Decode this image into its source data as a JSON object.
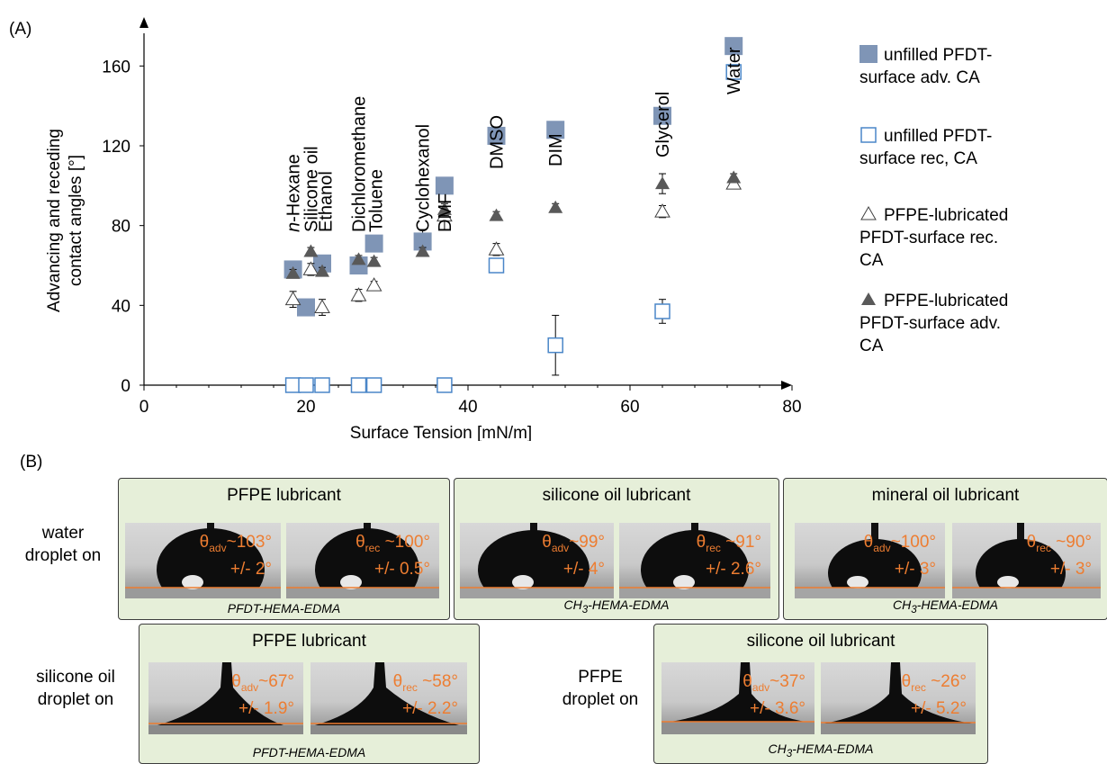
{
  "panel_a_label": "(A)",
  "panel_b_label": "(B)",
  "chart_data": {
    "type": "scatter",
    "xlabel": "Surface Tension [mN/m]",
    "ylabel": "Advancing and receding contact angles [°]",
    "xlim": [
      0,
      80
    ],
    "ylim": [
      0,
      180
    ],
    "xticks": [
      0,
      20,
      40,
      60,
      80
    ],
    "yticks": [
      0,
      40,
      80,
      120,
      160
    ],
    "grid": false,
    "legend": "right",
    "series": [
      {
        "name": "unfilled PFDT-surface adv. CA",
        "marker": "filled-square",
        "color": "#7f95b6",
        "x": [
          18.4,
          20.0,
          22.0,
          26.5,
          28.4,
          34.4,
          37.1,
          43.5,
          50.8,
          64.0,
          72.8
        ],
        "y": [
          58,
          39,
          61,
          60,
          71,
          72,
          100,
          125,
          128,
          135,
          170
        ],
        "err": [
          0,
          0,
          0,
          0,
          0,
          6,
          0,
          0,
          0,
          0,
          0
        ]
      },
      {
        "name": "unfilled PFDT-surface rec, CA",
        "marker": "open-square",
        "color": "#4a86c8",
        "x": [
          18.4,
          20.0,
          22.0,
          26.5,
          28.4,
          34.4,
          37.1,
          43.5,
          50.8,
          64.0,
          72.8
        ],
        "y": [
          0,
          0,
          0,
          0,
          0,
          null,
          0,
          60,
          20,
          37,
          157
        ],
        "err": [
          0,
          0,
          0,
          0,
          0,
          0,
          0,
          1,
          15,
          6,
          1
        ]
      },
      {
        "name": "PFPE-lubricated PFDT-surface rec. CA",
        "marker": "open-triangle",
        "color": "#404040",
        "x": [
          18.4,
          20.6,
          22.0,
          26.5,
          28.4,
          37.1,
          43.5,
          64.0,
          72.8
        ],
        "y": [
          43,
          58,
          39,
          45,
          50,
          85,
          68,
          87,
          101
        ],
        "err": [
          4,
          3,
          4,
          3,
          2,
          7,
          3,
          3,
          2
        ]
      },
      {
        "name": "PFPE-lubricated PFDT-surface adv. CA",
        "marker": "filled-triangle",
        "color": "#595959",
        "x": [
          18.4,
          20.6,
          22.0,
          26.5,
          28.4,
          34.4,
          37.1,
          43.5,
          50.8,
          64.0,
          72.8
        ],
        "y": [
          56,
          67,
          57,
          63,
          62,
          67,
          88,
          85,
          89,
          101,
          104
        ],
        "err": [
          2,
          2,
          2,
          2,
          2,
          2,
          3,
          2,
          2,
          5,
          2
        ]
      }
    ],
    "annotations": [
      {
        "text": "n-Hexane",
        "x": 18.4
      },
      {
        "text": "Silicone oil",
        "x": 20.6
      },
      {
        "text": "Ethanol",
        "x": 22.4
      },
      {
        "text": "Dichloromethane",
        "x": 26.5
      },
      {
        "text": "Toluene",
        "x": 28.6
      },
      {
        "text": "Cyclohexanol",
        "x": 34.4
      },
      {
        "text": "DMF",
        "x": 37.1
      },
      {
        "text": "DMSO",
        "x": 43.5
      },
      {
        "text": "DIM",
        "x": 50.8
      },
      {
        "text": "Glycerol",
        "x": 64.0
      },
      {
        "text": "Water",
        "x": 72.8
      }
    ]
  },
  "panels": {
    "row1_label": "water\ndroplet on",
    "row2_left_label": "silicone oil\ndroplet on",
    "row2_right_label": "PFPE\ndroplet on",
    "p1": {
      "title": "PFPE  lubricant",
      "caption": "PFDT-HEMA-EDMA",
      "adv": "~103°",
      "adv_err": "+/- 2°",
      "rec": " ~100°",
      "rec_err": "+/- 0.5°"
    },
    "p2": {
      "title": "silicone oil lubricant",
      "caption_pre": "CH",
      "caption_sub": "3",
      "caption_post": "-HEMA-EDMA",
      "adv": "~99°",
      "adv_err": "+/- 4°",
      "rec": " ~91°",
      "rec_err": "+/- 2.6°"
    },
    "p3": {
      "title": "mineral oil lubricant",
      "caption_pre": "CH",
      "caption_sub": "3",
      "caption_post": "-HEMA-EDMA",
      "adv": "~100°",
      "adv_err": "+/- 3°",
      "rec": " ~90°",
      "rec_err": "+/- 3°"
    },
    "p4": {
      "title": "PFPE  lubricant",
      "caption": "PFDT-HEMA-EDMA",
      "adv": "~67°",
      "adv_err": "+/- 1.9°",
      "rec": " ~58°",
      "rec_err": "+/- 2.2°"
    },
    "p5": {
      "title": "silicone oil lubricant",
      "caption_pre": "CH",
      "caption_sub": "3",
      "caption_post": "-HEMA-EDMA",
      "adv": "~37°",
      "adv_err": "+/- 3.6°",
      "rec": " ~26°",
      "rec_err": "+/- 5.2°"
    },
    "theta": "θ",
    "adv_sub": "adv",
    "rec_sub": "rec"
  }
}
